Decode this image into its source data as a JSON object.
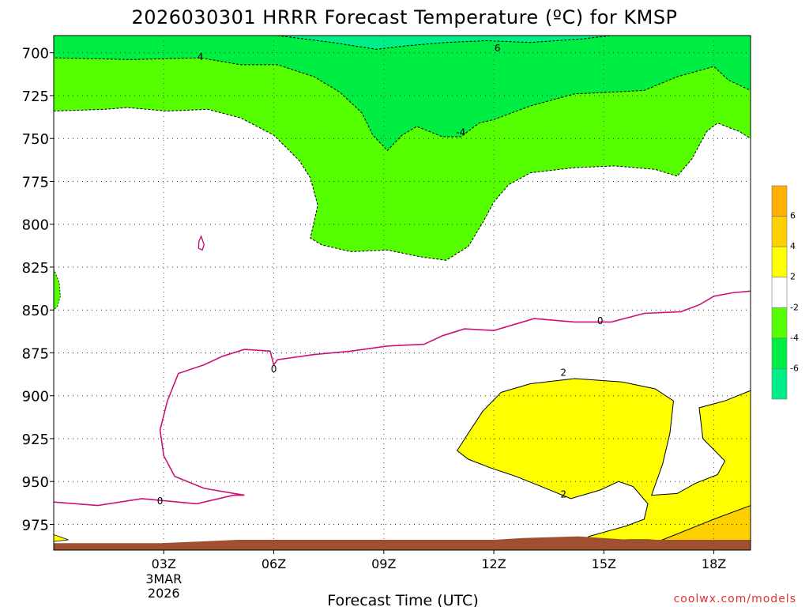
{
  "chart_data": {
    "type": "contour",
    "title": "2026030301 HRRR Forecast Temperature (ºC) for KMSP",
    "xlabel": "Forecast Time (UTC)",
    "x_ticks": [
      {
        "label": "03Z",
        "hour": 3,
        "sub": [
          "3MAR",
          "2026"
        ]
      },
      {
        "label": "06Z",
        "hour": 6
      },
      {
        "label": "09Z",
        "hour": 9
      },
      {
        "label": "12Z",
        "hour": 12
      },
      {
        "label": "15Z",
        "hour": 15
      },
      {
        "label": "18Z",
        "hour": 18
      }
    ],
    "xlim": [
      0,
      19
    ],
    "y_ticks": [
      700,
      725,
      750,
      775,
      800,
      825,
      850,
      875,
      900,
      925,
      950,
      975
    ],
    "ylim": [
      690,
      990
    ],
    "grid": true,
    "colorbar": {
      "labels": [
        "6",
        "4",
        "2",
        "-2",
        "-4",
        "-6"
      ],
      "colors": [
        "#ffb000",
        "#ffd000",
        "#ffff00",
        "#ffffff",
        "#55ff00",
        "#00ee44",
        "#00ee88"
      ]
    },
    "contour_labels": [
      {
        "text": "4",
        "hour": 4.0,
        "p": 702
      },
      {
        "text": "6",
        "hour": 12.1,
        "p": 697
      },
      {
        "text": "-4",
        "hour": 11.1,
        "p": 746
      },
      {
        "text": "0",
        "hour": 2.9,
        "p": 961
      },
      {
        "text": "0",
        "hour": 6.0,
        "p": 884
      },
      {
        "text": "0",
        "hour": 14.9,
        "p": 856
      },
      {
        "text": "2",
        "hour": 13.9,
        "p": 886
      },
      {
        "text": "2",
        "hour": 13.9,
        "p": 957
      }
    ],
    "series": [
      {
        "level": -6,
        "fill": "#00ee88",
        "points": [
          [
            6.1,
            690
          ],
          [
            7.6,
            694
          ],
          [
            8.8,
            698
          ],
          [
            9.6,
            696
          ],
          [
            10.7,
            694
          ],
          [
            11.8,
            693
          ],
          [
            13,
            694
          ],
          [
            14.4,
            692
          ],
          [
            15.2,
            690
          ]
        ]
      },
      {
        "level": -4,
        "fill": "#00ee44",
        "points": [
          [
            0,
            703
          ],
          [
            2.1,
            704
          ],
          [
            4.0,
            703
          ],
          [
            5.1,
            707
          ],
          [
            6.1,
            707
          ],
          [
            7.1,
            714
          ],
          [
            7.8,
            723
          ],
          [
            8.4,
            735
          ],
          [
            8.7,
            748
          ],
          [
            9.1,
            757
          ],
          [
            9.5,
            748
          ],
          [
            9.9,
            743
          ],
          [
            10.6,
            749
          ],
          [
            11.1,
            749
          ],
          [
            11.6,
            741
          ],
          [
            12,
            739
          ],
          [
            13,
            731
          ],
          [
            14.2,
            724
          ],
          [
            15.2,
            723
          ],
          [
            16.1,
            722
          ],
          [
            17,
            714
          ],
          [
            18.0,
            708
          ],
          [
            18.4,
            716
          ],
          [
            19,
            722
          ]
        ]
      },
      {
        "level": -2,
        "fill": "#55ff00",
        "points": [
          [
            0,
            734
          ],
          [
            1.4,
            733
          ],
          [
            2,
            732
          ],
          [
            3.1,
            734
          ],
          [
            4.2,
            733
          ],
          [
            5.1,
            738
          ],
          [
            6,
            748
          ],
          [
            6.7,
            763
          ],
          [
            7.0,
            773
          ],
          [
            7.2,
            789
          ],
          [
            7.0,
            808
          ],
          [
            7.3,
            812
          ],
          [
            8.1,
            816
          ],
          [
            9.1,
            815
          ],
          [
            10,
            819
          ],
          [
            10.7,
            821
          ],
          [
            11.3,
            813
          ],
          [
            11.7,
            799
          ],
          [
            12,
            787
          ],
          [
            12.4,
            777
          ],
          [
            13,
            770
          ],
          [
            14.2,
            767
          ],
          [
            15.3,
            766
          ],
          [
            16.4,
            768
          ],
          [
            17.0,
            772
          ],
          [
            17.4,
            762
          ],
          [
            17.8,
            746
          ],
          [
            18.1,
            741
          ],
          [
            18.7,
            746
          ],
          [
            19,
            750
          ]
        ]
      },
      {
        "level": 0,
        "stroke": "#cc1177",
        "points": [
          [
            0,
            962
          ],
          [
            1.2,
            964
          ],
          [
            2.4,
            960
          ],
          [
            2.9,
            961
          ],
          [
            3.9,
            963
          ],
          [
            4.9,
            958
          ],
          [
            5.2,
            958
          ],
          [
            4.1,
            954
          ],
          [
            3.3,
            947
          ],
          [
            3.0,
            935
          ],
          [
            2.9,
            920
          ],
          [
            3.1,
            903
          ],
          [
            3.4,
            887
          ],
          [
            4.1,
            882
          ],
          [
            4.6,
            877
          ],
          [
            5.2,
            873
          ],
          [
            5.9,
            874
          ],
          [
            6.0,
            882
          ],
          [
            6.1,
            879
          ],
          [
            7.1,
            876
          ],
          [
            8.1,
            874
          ],
          [
            9.1,
            871
          ],
          [
            10.1,
            870
          ],
          [
            10.6,
            865
          ],
          [
            11.2,
            861
          ],
          [
            12,
            862
          ],
          [
            13.1,
            855
          ],
          [
            14.2,
            857
          ],
          [
            15.2,
            857
          ],
          [
            16.1,
            852
          ],
          [
            17.1,
            851
          ],
          [
            17.6,
            847
          ],
          [
            18.0,
            842
          ],
          [
            18.5,
            840
          ],
          [
            19,
            839
          ]
        ]
      },
      {
        "level": 2,
        "fill": "#ffff00",
        "points": [
          [
            11.0,
            932
          ],
          [
            11.3,
            922
          ],
          [
            11.7,
            909
          ],
          [
            12.2,
            898
          ],
          [
            13.0,
            893
          ],
          [
            14.2,
            890
          ],
          [
            15.5,
            892
          ],
          [
            16.4,
            896
          ],
          [
            16.9,
            903
          ],
          [
            16.8,
            922
          ],
          [
            16.6,
            940
          ],
          [
            16.3,
            958
          ],
          [
            17,
            957
          ],
          [
            17.5,
            951
          ],
          [
            18.1,
            946
          ],
          [
            18.3,
            938
          ],
          [
            17.7,
            925
          ],
          [
            17.6,
            907
          ],
          [
            18.3,
            903
          ],
          [
            19,
            897
          ],
          [
            19,
            990
          ],
          [
            18.2,
            990
          ],
          [
            17.2,
            985
          ],
          [
            16.2,
            984
          ],
          [
            15.1,
            984
          ],
          [
            14.3,
            986
          ],
          [
            14.6,
            982
          ],
          [
            15.6,
            976
          ],
          [
            16.1,
            972
          ],
          [
            16.2,
            963
          ],
          [
            15.8,
            953
          ],
          [
            15.4,
            950
          ],
          [
            14.9,
            955
          ],
          [
            14.1,
            960
          ],
          [
            13.3,
            953
          ],
          [
            12.6,
            947
          ],
          [
            11.9,
            942
          ],
          [
            11.3,
            937
          ]
        ]
      },
      {
        "level": 4,
        "fill": "#ffd000",
        "points": [
          [
            15.5,
            990
          ],
          [
            16.6,
            984
          ],
          [
            18.0,
            972
          ],
          [
            19,
            964
          ],
          [
            19,
            990
          ]
        ]
      },
      {
        "level": "terrain",
        "fill": "#a05030",
        "points": [
          [
            0,
            986
          ],
          [
            2.9,
            986
          ],
          [
            4.0,
            985
          ],
          [
            5.0,
            984
          ],
          [
            6,
            984
          ],
          [
            8.2,
            984
          ],
          [
            9.0,
            984
          ],
          [
            10,
            984
          ],
          [
            12,
            984
          ],
          [
            12.8,
            983
          ],
          [
            14.3,
            982
          ],
          [
            15.7,
            984
          ],
          [
            17.2,
            984
          ],
          [
            18.7,
            984
          ],
          [
            19,
            984
          ],
          [
            19,
            990
          ],
          [
            0,
            990
          ]
        ]
      }
    ]
  },
  "credit": "coolwx.com/models"
}
